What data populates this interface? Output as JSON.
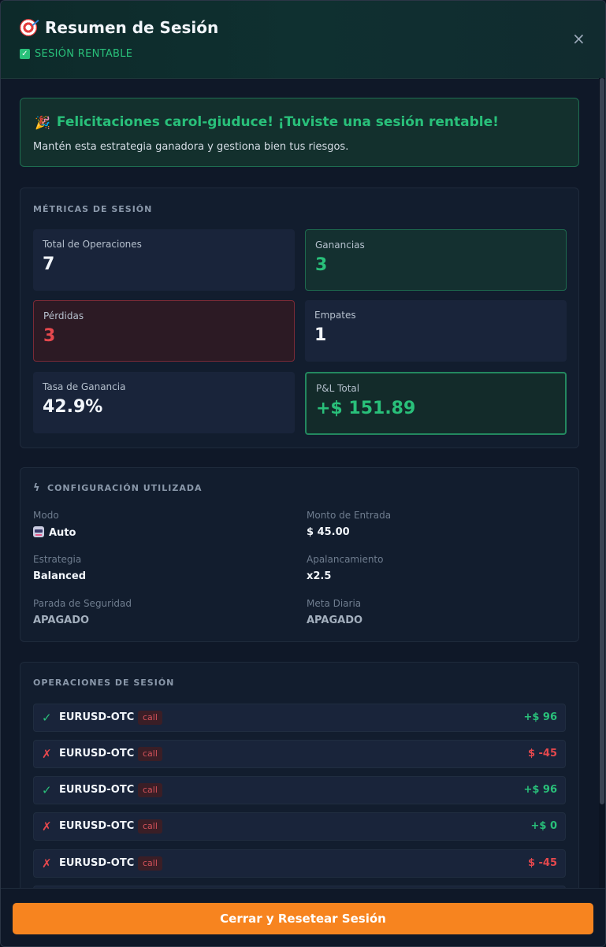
{
  "header": {
    "title": "Resumen de Sesión",
    "status": "SESIÓN RENTABLE"
  },
  "congrats": {
    "title": "Felicitaciones carol-giuduce! ¡Tuviste una sesión rentable!",
    "message": "Mantén esta estrategia ganadora y gestiona bien tus riesgos."
  },
  "metrics": {
    "section_title": "MÉTRICAS DE SESIÓN",
    "items": [
      {
        "label": "Total de Operaciones",
        "value": "7"
      },
      {
        "label": "Ganancias",
        "value": "3"
      },
      {
        "label": "Pérdidas",
        "value": "3"
      },
      {
        "label": "Empates",
        "value": "1"
      },
      {
        "label": "Tasa de Ganancia",
        "value": "42.9%"
      },
      {
        "label": "P&L Total",
        "value": "+$ 151.89"
      }
    ]
  },
  "config": {
    "section_title": "CONFIGURACIÓN UTILIZADA",
    "items": [
      {
        "label": "Modo",
        "value": "Auto"
      },
      {
        "label": "Monto de Entrada",
        "value": "$ 45.00"
      },
      {
        "label": "Estrategia",
        "value": "Balanced"
      },
      {
        "label": "Apalancamiento",
        "value": "x2.5"
      },
      {
        "label": "Parada de Seguridad",
        "value": "APAGADO"
      },
      {
        "label": "Meta Diaria",
        "value": "APAGADO"
      }
    ]
  },
  "trades": {
    "section_title": "OPERACIONES DE SESIÓN",
    "items": [
      {
        "icon": "✓",
        "pair": "EURUSD-OTC",
        "type": "call",
        "pnl": "+$ 96"
      },
      {
        "icon": "✗",
        "pair": "EURUSD-OTC",
        "type": "call",
        "pnl": "$ -45"
      },
      {
        "icon": "✓",
        "pair": "EURUSD-OTC",
        "type": "call",
        "pnl": "+$ 96"
      },
      {
        "icon": "✗",
        "pair": "EURUSD-OTC",
        "type": "call",
        "pnl": "+$ 0"
      },
      {
        "icon": "✗",
        "pair": "EURUSD-OTC",
        "type": "call",
        "pnl": "$ -45"
      }
    ]
  },
  "footer": {
    "button_label": "Cerrar y Resetear Sesión"
  },
  "colors": {
    "accent_green": "#29c07a",
    "loss_red": "#e5484d",
    "cta_orange": "#f7841f"
  },
  "icons": {
    "title": "target-icon",
    "status": "check-box-icon",
    "close": "close-icon",
    "congrats": "party-popper-icon",
    "config": "bolt-icon",
    "mode": "robot-icon"
  }
}
